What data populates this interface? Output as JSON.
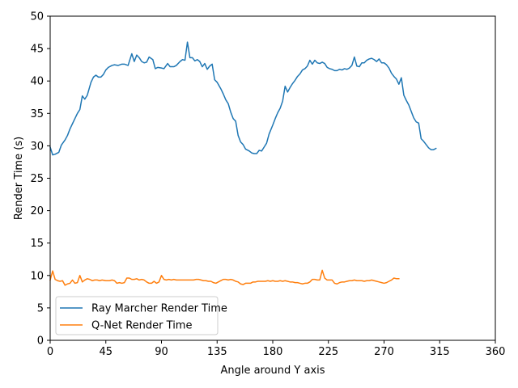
{
  "chart_data": {
    "type": "line",
    "title": "",
    "xlabel": "Angle around Y axis",
    "ylabel": "Render Time (s)",
    "xlim": [
      0,
      360
    ],
    "ylim": [
      0,
      50
    ],
    "xticks": [
      0,
      45,
      90,
      135,
      180,
      225,
      270,
      315,
      360
    ],
    "yticks": [
      0,
      5,
      10,
      15,
      20,
      25,
      30,
      35,
      40,
      45,
      50
    ],
    "grid": false,
    "legend_position": "lower-left",
    "series": [
      {
        "name": "Ray Marcher Render Time",
        "color": "#1f77b4",
        "points": [
          [
            0,
            29.8
          ],
          [
            2,
            28.6
          ],
          [
            4,
            28.7
          ],
          [
            7,
            29.0
          ],
          [
            9,
            30.1
          ],
          [
            12,
            30.9
          ],
          [
            14,
            31.6
          ],
          [
            16,
            32.6
          ],
          [
            18,
            33.4
          ],
          [
            20,
            34.2
          ],
          [
            22,
            35.0
          ],
          [
            24,
            35.6
          ],
          [
            26,
            37.7
          ],
          [
            28,
            37.2
          ],
          [
            30,
            37.8
          ],
          [
            33,
            39.8
          ],
          [
            35,
            40.6
          ],
          [
            37,
            40.9
          ],
          [
            39,
            40.6
          ],
          [
            41,
            40.6
          ],
          [
            43,
            41.0
          ],
          [
            45,
            41.7
          ],
          [
            47,
            42.1
          ],
          [
            50,
            42.4
          ],
          [
            52,
            42.5
          ],
          [
            55,
            42.4
          ],
          [
            58,
            42.6
          ],
          [
            60,
            42.6
          ],
          [
            63,
            42.4
          ],
          [
            66,
            44.2
          ],
          [
            68,
            43.0
          ],
          [
            70,
            44.0
          ],
          [
            72,
            43.6
          ],
          [
            74,
            43.0
          ],
          [
            76,
            42.8
          ],
          [
            78,
            42.9
          ],
          [
            80,
            43.7
          ],
          [
            83,
            43.3
          ],
          [
            85,
            41.9
          ],
          [
            87,
            42.1
          ],
          [
            90,
            42.0
          ],
          [
            92,
            41.9
          ],
          [
            95,
            42.7
          ],
          [
            97,
            42.2
          ],
          [
            100,
            42.2
          ],
          [
            102,
            42.4
          ],
          [
            105,
            43.0
          ],
          [
            107,
            43.3
          ],
          [
            109,
            43.2
          ],
          [
            111,
            46.0
          ],
          [
            113,
            43.6
          ],
          [
            115,
            43.6
          ],
          [
            117,
            43.1
          ],
          [
            119,
            43.3
          ],
          [
            121,
            43.0
          ],
          [
            123,
            42.2
          ],
          [
            125,
            42.7
          ],
          [
            127,
            41.8
          ],
          [
            129,
            42.3
          ],
          [
            131,
            42.6
          ],
          [
            133,
            40.2
          ],
          [
            135,
            39.8
          ],
          [
            138,
            38.8
          ],
          [
            140,
            38.0
          ],
          [
            142,
            37.1
          ],
          [
            144,
            36.5
          ],
          [
            146,
            35.2
          ],
          [
            148,
            34.2
          ],
          [
            150,
            33.8
          ],
          [
            152,
            31.6
          ],
          [
            154,
            30.6
          ],
          [
            156,
            30.2
          ],
          [
            158,
            29.5
          ],
          [
            161,
            29.2
          ],
          [
            163,
            28.9
          ],
          [
            165,
            28.8
          ],
          [
            167,
            28.8
          ],
          [
            169,
            29.3
          ],
          [
            171,
            29.2
          ],
          [
            173,
            29.8
          ],
          [
            175,
            30.4
          ],
          [
            177,
            31.8
          ],
          [
            180,
            33.2
          ],
          [
            182,
            34.2
          ],
          [
            184,
            35.1
          ],
          [
            186,
            35.8
          ],
          [
            188,
            36.9
          ],
          [
            190,
            39.2
          ],
          [
            192,
            38.3
          ],
          [
            194,
            39.0
          ],
          [
            196,
            39.6
          ],
          [
            198,
            40.1
          ],
          [
            200,
            40.7
          ],
          [
            202,
            41.1
          ],
          [
            204,
            41.7
          ],
          [
            206,
            41.9
          ],
          [
            208,
            42.3
          ],
          [
            210,
            43.2
          ],
          [
            212,
            42.6
          ],
          [
            214,
            43.2
          ],
          [
            216,
            42.8
          ],
          [
            218,
            42.7
          ],
          [
            220,
            42.9
          ],
          [
            222,
            42.7
          ],
          [
            224,
            42.1
          ],
          [
            226,
            41.9
          ],
          [
            228,
            41.8
          ],
          [
            230,
            41.6
          ],
          [
            232,
            41.6
          ],
          [
            234,
            41.8
          ],
          [
            236,
            41.7
          ],
          [
            238,
            41.9
          ],
          [
            240,
            41.8
          ],
          [
            242,
            42.0
          ],
          [
            244,
            42.4
          ],
          [
            246,
            43.7
          ],
          [
            248,
            42.3
          ],
          [
            250,
            42.2
          ],
          [
            252,
            42.8
          ],
          [
            254,
            42.8
          ],
          [
            256,
            43.2
          ],
          [
            258,
            43.4
          ],
          [
            260,
            43.5
          ],
          [
            262,
            43.3
          ],
          [
            264,
            43.0
          ],
          [
            266,
            43.4
          ],
          [
            268,
            42.8
          ],
          [
            270,
            42.8
          ],
          [
            272,
            42.5
          ],
          [
            274,
            42.0
          ],
          [
            276,
            41.2
          ],
          [
            278,
            40.7
          ],
          [
            280,
            40.3
          ],
          [
            282,
            39.5
          ],
          [
            284,
            40.5
          ],
          [
            286,
            37.8
          ],
          [
            288,
            37.0
          ],
          [
            290,
            36.3
          ],
          [
            292,
            35.3
          ],
          [
            294,
            34.3
          ],
          [
            296,
            33.7
          ],
          [
            298,
            33.5
          ],
          [
            300,
            31.1
          ],
          [
            302,
            30.7
          ],
          [
            304,
            30.2
          ],
          [
            306,
            29.7
          ],
          [
            308,
            29.4
          ],
          [
            310,
            29.4
          ],
          [
            312,
            29.6
          ]
        ]
      },
      {
        "name": "Q-Net Render Time",
        "color": "#ff7f0e",
        "points": [
          [
            0,
            9.3
          ],
          [
            2,
            10.7
          ],
          [
            4,
            9.4
          ],
          [
            6,
            9.2
          ],
          [
            8,
            9.1
          ],
          [
            10,
            9.2
          ],
          [
            12,
            8.5
          ],
          [
            14,
            8.7
          ],
          [
            16,
            8.8
          ],
          [
            18,
            9.3
          ],
          [
            20,
            8.8
          ],
          [
            22,
            8.9
          ],
          [
            24,
            10.0
          ],
          [
            26,
            9.0
          ],
          [
            28,
            9.3
          ],
          [
            30,
            9.5
          ],
          [
            32,
            9.4
          ],
          [
            34,
            9.2
          ],
          [
            36,
            9.3
          ],
          [
            38,
            9.3
          ],
          [
            40,
            9.2
          ],
          [
            42,
            9.3
          ],
          [
            45,
            9.2
          ],
          [
            48,
            9.2
          ],
          [
            50,
            9.3
          ],
          [
            52,
            9.2
          ],
          [
            54,
            8.8
          ],
          [
            56,
            8.9
          ],
          [
            58,
            8.8
          ],
          [
            60,
            8.9
          ],
          [
            62,
            9.6
          ],
          [
            64,
            9.6
          ],
          [
            66,
            9.4
          ],
          [
            68,
            9.4
          ],
          [
            70,
            9.5
          ],
          [
            72,
            9.3
          ],
          [
            74,
            9.4
          ],
          [
            76,
            9.3
          ],
          [
            78,
            9.0
          ],
          [
            80,
            8.8
          ],
          [
            82,
            8.8
          ],
          [
            84,
            9.1
          ],
          [
            86,
            8.8
          ],
          [
            88,
            9.0
          ],
          [
            90,
            10.0
          ],
          [
            92,
            9.4
          ],
          [
            94,
            9.3
          ],
          [
            96,
            9.4
          ],
          [
            98,
            9.3
          ],
          [
            100,
            9.4
          ],
          [
            102,
            9.3
          ],
          [
            104,
            9.3
          ],
          [
            106,
            9.3
          ],
          [
            108,
            9.3
          ],
          [
            110,
            9.3
          ],
          [
            112,
            9.3
          ],
          [
            114,
            9.3
          ],
          [
            116,
            9.3
          ],
          [
            118,
            9.4
          ],
          [
            120,
            9.4
          ],
          [
            122,
            9.3
          ],
          [
            124,
            9.2
          ],
          [
            126,
            9.2
          ],
          [
            128,
            9.1
          ],
          [
            130,
            9.1
          ],
          [
            132,
            8.9
          ],
          [
            134,
            8.8
          ],
          [
            136,
            9.0
          ],
          [
            138,
            9.2
          ],
          [
            140,
            9.4
          ],
          [
            142,
            9.4
          ],
          [
            144,
            9.3
          ],
          [
            146,
            9.4
          ],
          [
            148,
            9.3
          ],
          [
            150,
            9.1
          ],
          [
            152,
            9.0
          ],
          [
            154,
            8.7
          ],
          [
            156,
            8.6
          ],
          [
            158,
            8.8
          ],
          [
            160,
            8.8
          ],
          [
            162,
            8.8
          ],
          [
            164,
            9.0
          ],
          [
            166,
            9.0
          ],
          [
            168,
            9.1
          ],
          [
            170,
            9.1
          ],
          [
            172,
            9.1
          ],
          [
            174,
            9.1
          ],
          [
            176,
            9.2
          ],
          [
            178,
            9.1
          ],
          [
            180,
            9.2
          ],
          [
            182,
            9.1
          ],
          [
            184,
            9.1
          ],
          [
            186,
            9.2
          ],
          [
            188,
            9.1
          ],
          [
            190,
            9.2
          ],
          [
            192,
            9.1
          ],
          [
            194,
            9.0
          ],
          [
            196,
            9.0
          ],
          [
            198,
            8.9
          ],
          [
            200,
            8.9
          ],
          [
            202,
            8.8
          ],
          [
            204,
            8.7
          ],
          [
            206,
            8.8
          ],
          [
            208,
            8.8
          ],
          [
            210,
            9.0
          ],
          [
            212,
            9.4
          ],
          [
            214,
            9.4
          ],
          [
            216,
            9.3
          ],
          [
            218,
            9.3
          ],
          [
            220,
            10.8
          ],
          [
            222,
            9.6
          ],
          [
            224,
            9.3
          ],
          [
            226,
            9.3
          ],
          [
            228,
            9.3
          ],
          [
            230,
            8.8
          ],
          [
            232,
            8.7
          ],
          [
            234,
            8.9
          ],
          [
            236,
            9.0
          ],
          [
            238,
            9.0
          ],
          [
            240,
            9.1
          ],
          [
            242,
            9.2
          ],
          [
            244,
            9.2
          ],
          [
            246,
            9.3
          ],
          [
            248,
            9.2
          ],
          [
            250,
            9.2
          ],
          [
            252,
            9.2
          ],
          [
            254,
            9.1
          ],
          [
            256,
            9.2
          ],
          [
            258,
            9.2
          ],
          [
            260,
            9.3
          ],
          [
            262,
            9.2
          ],
          [
            264,
            9.1
          ],
          [
            266,
            9.0
          ],
          [
            268,
            8.9
          ],
          [
            270,
            8.8
          ],
          [
            272,
            8.9
          ],
          [
            274,
            9.1
          ],
          [
            276,
            9.3
          ],
          [
            278,
            9.6
          ],
          [
            280,
            9.5
          ],
          [
            282,
            9.5
          ]
        ]
      }
    ]
  }
}
